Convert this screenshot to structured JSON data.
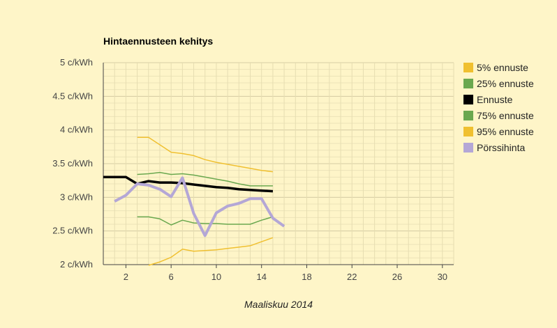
{
  "chart_data": {
    "type": "line",
    "title": "Hintaennusteen kehitys",
    "xlabel": "Maaliskuu 2014",
    "ylabel": "",
    "xlim": [
      0,
      31
    ],
    "ylim": [
      2,
      5
    ],
    "xticks": [
      2,
      6,
      10,
      14,
      18,
      22,
      26,
      30
    ],
    "yticks": [
      {
        "value": 2,
        "label": "2 c/kWh"
      },
      {
        "value": 2.5,
        "label": "2.5 c/kWh"
      },
      {
        "value": 3,
        "label": "3 c/kWh"
      },
      {
        "value": 3.5,
        "label": "3.5 c/kWh"
      },
      {
        "value": 4,
        "label": "4 c/kWh"
      },
      {
        "value": 4.5,
        "label": "4.5 c/kWh"
      },
      {
        "value": 5,
        "label": "5 c/kWh"
      }
    ],
    "grid": true,
    "legend_position": "right",
    "series": [
      {
        "name": "5% ennuste",
        "color": "#f0c030",
        "width": 1.5,
        "x": [
          4,
          5,
          6,
          7,
          8,
          9,
          10,
          11,
          12,
          13,
          14,
          15
        ],
        "y": [
          1.99,
          2.04,
          2.11,
          2.23,
          2.2,
          2.21,
          2.22,
          2.24,
          2.26,
          2.28,
          2.34,
          2.4
        ]
      },
      {
        "name": "25% ennuste",
        "color": "#6aa84f",
        "width": 1.5,
        "x": [
          3,
          4,
          5,
          6,
          7,
          8,
          9,
          10,
          11,
          12,
          13,
          14,
          15
        ],
        "y": [
          2.71,
          2.71,
          2.68,
          2.59,
          2.66,
          2.62,
          2.61,
          2.61,
          2.6,
          2.6,
          2.6,
          2.66,
          2.71
        ]
      },
      {
        "name": "Ennuste",
        "color": "#000000",
        "width": 3.5,
        "x": [
          0,
          1,
          2,
          3,
          4,
          5,
          6,
          7,
          8,
          9,
          10,
          11,
          12,
          13,
          14,
          15
        ],
        "y": [
          3.3,
          3.3,
          3.3,
          3.2,
          3.24,
          3.22,
          3.22,
          3.21,
          3.19,
          3.17,
          3.15,
          3.14,
          3.12,
          3.11,
          3.1,
          3.09
        ]
      },
      {
        "name": "75% ennuste",
        "color": "#6aa84f",
        "width": 1.5,
        "x": [
          3,
          4,
          5,
          6,
          7,
          8,
          9,
          10,
          11,
          12,
          13,
          14,
          15
        ],
        "y": [
          3.34,
          3.35,
          3.37,
          3.34,
          3.35,
          3.33,
          3.3,
          3.27,
          3.24,
          3.2,
          3.17,
          3.17,
          3.17
        ]
      },
      {
        "name": "95% ennuste",
        "color": "#f0c030",
        "width": 1.5,
        "x": [
          3,
          4,
          5,
          6,
          7,
          8,
          9,
          10,
          11,
          12,
          13,
          14,
          15
        ],
        "y": [
          3.89,
          3.89,
          3.78,
          3.67,
          3.65,
          3.62,
          3.56,
          3.52,
          3.49,
          3.46,
          3.43,
          3.4,
          3.38
        ]
      },
      {
        "name": "Pörssihinta",
        "color": "#b4a7d6",
        "width": 4,
        "x": [
          1,
          2,
          3,
          4,
          5,
          6,
          7,
          8,
          9,
          10,
          11,
          12,
          13,
          14,
          15,
          16
        ],
        "y": [
          2.94,
          3.03,
          3.2,
          3.18,
          3.12,
          3.01,
          3.29,
          2.76,
          2.43,
          2.77,
          2.87,
          2.91,
          2.98,
          2.98,
          2.69,
          2.57
        ]
      }
    ]
  }
}
